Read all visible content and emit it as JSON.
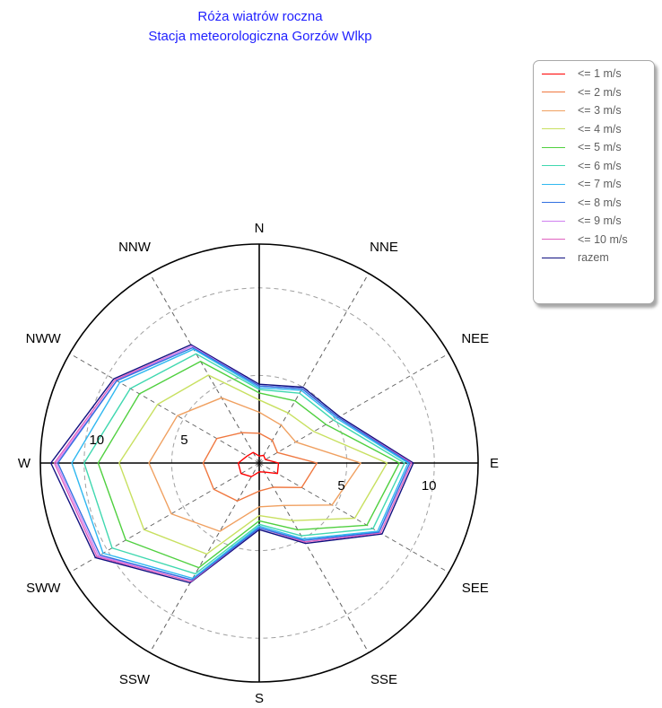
{
  "chart_data": {
    "type": "polar-line",
    "title": "Róża wiatrów roczna",
    "subtitle": "Stacja meteorologiczna Gorzów Wlkp",
    "directions": [
      "N",
      "NNE",
      "NEE",
      "E",
      "SEE",
      "SSE",
      "S",
      "SSW",
      "SWW",
      "W",
      "NWW",
      "NNW"
    ],
    "rlim": [
      0,
      12.5
    ],
    "rticks": [
      5,
      10
    ],
    "grid": true,
    "legend_position": "top-right",
    "series": [
      {
        "name": "<= 1 m/s",
        "color": "#ff0000",
        "values": [
          0.4,
          0.5,
          0.4,
          1.1,
          1.2,
          0.6,
          0.5,
          0.9,
          1.2,
          1.2,
          0.8,
          0.7
        ]
      },
      {
        "name": "<= 2 m/s",
        "color": "#f07840",
        "values": [
          1.7,
          1.5,
          1.2,
          3.3,
          2.8,
          1.6,
          1.6,
          2.5,
          3.0,
          3.2,
          2.8,
          2.0
        ]
      },
      {
        "name": "<= 3 m/s",
        "color": "#f0a060",
        "values": [
          2.9,
          2.5,
          2.4,
          5.8,
          4.8,
          2.8,
          2.5,
          4.5,
          5.8,
          6.3,
          5.4,
          4.3
        ]
      },
      {
        "name": "<= 4 m/s",
        "color": "#c8e060",
        "values": [
          3.6,
          3.3,
          3.6,
          7.3,
          6.3,
          3.8,
          3.0,
          6.0,
          7.6,
          8.0,
          6.7,
          5.8
        ]
      },
      {
        "name": "<= 5 m/s",
        "color": "#50d040",
        "values": [
          4.0,
          4.1,
          4.4,
          8.0,
          7.1,
          4.4,
          3.3,
          6.9,
          8.8,
          9.2,
          7.9,
          6.7
        ]
      },
      {
        "name": "<= 6 m/s",
        "color": "#40d8b0",
        "values": [
          4.2,
          4.6,
          4.9,
          8.3,
          7.5,
          4.8,
          3.5,
          7.3,
          9.7,
          10.0,
          8.5,
          7.2
        ]
      },
      {
        "name": "<= 7 m/s",
        "color": "#30b8f0",
        "values": [
          4.3,
          4.8,
          5.1,
          8.5,
          7.8,
          5.0,
          3.6,
          7.6,
          10.3,
          10.7,
          9.2,
          7.5
        ]
      },
      {
        "name": "<= 8 m/s",
        "color": "#3070e0",
        "values": [
          4.4,
          4.9,
          5.2,
          8.6,
          7.9,
          5.1,
          3.7,
          7.7,
          10.5,
          11.5,
          9.4,
          7.6
        ]
      },
      {
        "name": "<= 9 m/s",
        "color": "#d080f0",
        "values": [
          4.4,
          4.9,
          5.2,
          8.6,
          7.9,
          5.1,
          3.7,
          7.7,
          10.6,
          11.6,
          9.4,
          7.7
        ]
      },
      {
        "name": "<= 10 m/s",
        "color": "#e060c0",
        "values": [
          4.4,
          4.9,
          5.2,
          8.7,
          8.0,
          5.2,
          3.7,
          7.8,
          10.7,
          11.7,
          9.5,
          7.7
        ]
      },
      {
        "name": "razem",
        "color": "#101080",
        "values": [
          4.5,
          5.0,
          5.3,
          8.8,
          8.1,
          5.3,
          3.8,
          7.9,
          10.8,
          11.9,
          9.6,
          7.8
        ]
      }
    ]
  }
}
